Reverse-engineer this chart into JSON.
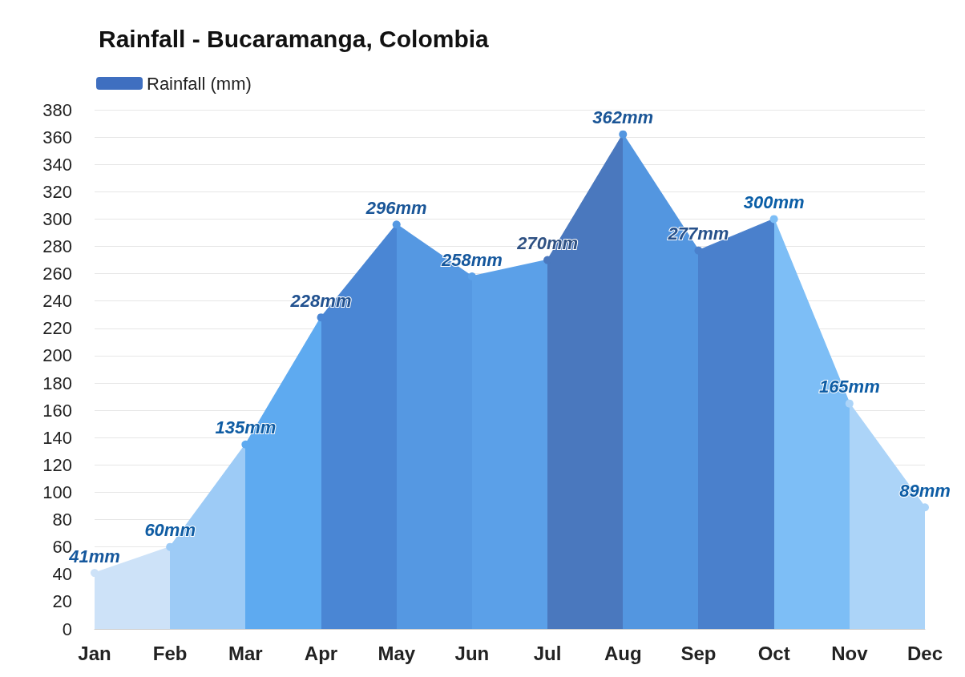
{
  "chart_data": {
    "type": "area",
    "title": "Rainfall - Bucaramanga, Colombia",
    "categories": [
      "Jan",
      "Feb",
      "Mar",
      "Apr",
      "May",
      "Jun",
      "Jul",
      "Aug",
      "Sep",
      "Oct",
      "Nov",
      "Dec"
    ],
    "series": [
      {
        "name": "Rainfall (mm)",
        "color": "#3f6fc0",
        "values": [
          41,
          60,
          135,
          228,
          296,
          258,
          270,
          362,
          277,
          300,
          165,
          89
        ],
        "value_labels": [
          "41mm",
          "60mm",
          "135mm",
          "228mm",
          "296mm",
          "258mm",
          "270mm",
          "362mm",
          "277mm",
          "300mm",
          "165mm",
          "89mm"
        ]
      }
    ],
    "colors": [
      "#cde2f8",
      "#9dcbf6",
      "#5eaaf0",
      "#4a86d4",
      "#5598e2",
      "#5ba0e8",
      "#4a78be",
      "#5396e0",
      "#4a80cc",
      "#7dbef6",
      "#acd4f8",
      "#acd4f8"
    ],
    "ylim": [
      0,
      380
    ],
    "yticks": [
      0,
      20,
      40,
      60,
      80,
      100,
      120,
      140,
      160,
      180,
      200,
      220,
      240,
      260,
      280,
      300,
      320,
      340,
      360,
      380
    ],
    "grid": "y",
    "legend": "top left",
    "marker": "circle"
  }
}
